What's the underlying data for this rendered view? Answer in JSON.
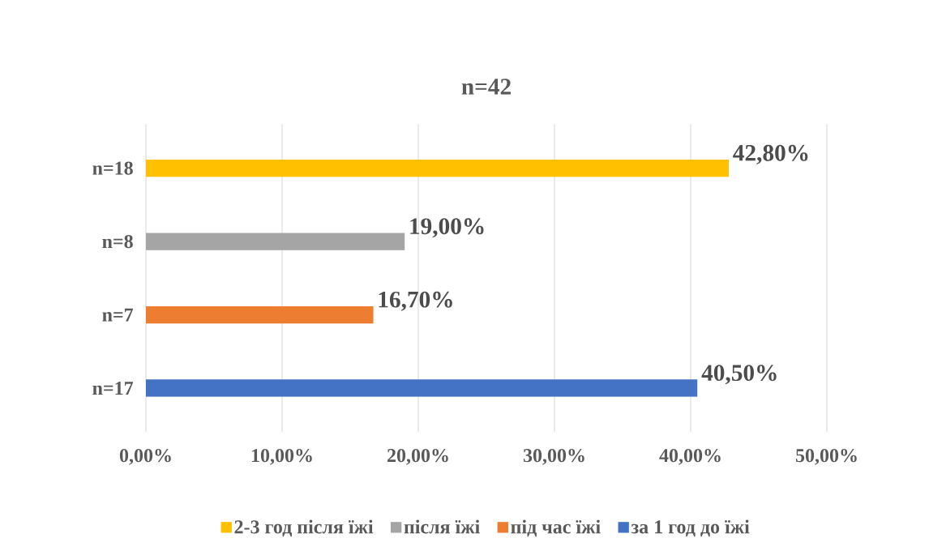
{
  "chart_data": {
    "type": "bar",
    "orientation": "horizontal",
    "title": "n=42",
    "categories": [
      "n=18",
      "n=8",
      "n=7",
      "n=17"
    ],
    "series": [
      {
        "name": "2-3 год після їжі",
        "color": "#ffc000",
        "values": [
          42.8,
          null,
          null,
          null
        ],
        "value_labels": [
          "42,80%",
          null,
          null,
          null
        ]
      },
      {
        "name": "після їжі",
        "color": "#a5a5a5",
        "values": [
          null,
          19.0,
          null,
          null
        ],
        "value_labels": [
          null,
          "19,00%",
          null,
          null
        ]
      },
      {
        "name": "під час їжі",
        "color": "#ed7d31",
        "values": [
          null,
          null,
          16.7,
          null
        ],
        "value_labels": [
          null,
          null,
          "16,70%",
          null
        ]
      },
      {
        "name": "за 1 год до їжі",
        "color": "#4472c4",
        "values": [
          null,
          null,
          null,
          40.5
        ],
        "value_labels": [
          null,
          null,
          null,
          "40,50%"
        ]
      }
    ],
    "xlim": [
      0,
      50
    ],
    "xticks": [
      {
        "value": 0,
        "label": "0,00%"
      },
      {
        "value": 10,
        "label": "10,00%"
      },
      {
        "value": 20,
        "label": "20,00%"
      },
      {
        "value": 30,
        "label": "30,00%"
      },
      {
        "value": 40,
        "label": "40,00%"
      },
      {
        "value": 50,
        "label": "50,00%"
      }
    ],
    "grid": "x",
    "legend": "bottom"
  }
}
